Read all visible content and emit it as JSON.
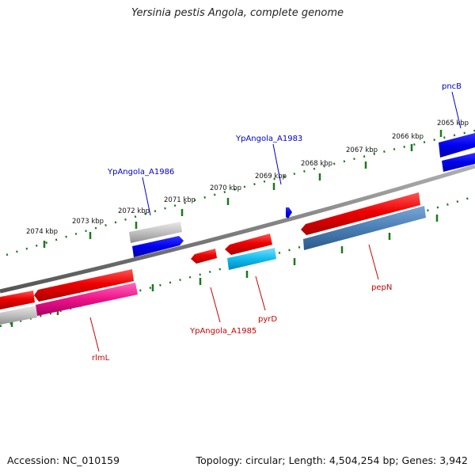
{
  "title": "Yersinia pestis Angola, complete genome",
  "footer": {
    "accession": "Accession: NC_010159",
    "topology": "Topology: circular; Length: 4,504,254 bp; Genes: 3,942"
  },
  "ticks": [
    "2065 kbp",
    "2066 kbp",
    "2067 kbp",
    "2068 kbp",
    "2069 kbp",
    "2070 kbp",
    "2071 kbp",
    "2072 kbp",
    "2073 kbp",
    "2074 kbp"
  ],
  "genes": {
    "forward": [
      "pncB",
      "YpAngola_A1983",
      "YpAngola_A1986"
    ],
    "reverse": [
      "pepN",
      "pyrD",
      "YpAngola_A1985",
      "rlmL"
    ]
  },
  "colors": {
    "forward_label": "#0000cc",
    "reverse_label": "#cc0000",
    "forward_cds": "#0000ee",
    "reverse_cds": "#ee0000",
    "tick": "#1a7a1a",
    "backbone": "#808080"
  }
}
